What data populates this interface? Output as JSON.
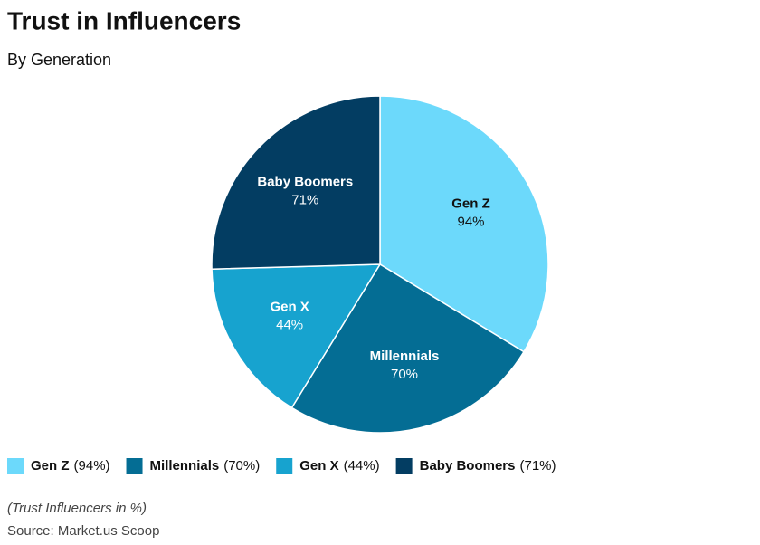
{
  "chart_data": {
    "type": "pie",
    "title": "Trust in Influencers",
    "subtitle": "By Generation",
    "categories": [
      "Gen Z",
      "Millennials",
      "Gen X",
      "Baby Boomers"
    ],
    "values": [
      94,
      70,
      44,
      71
    ],
    "value_labels": [
      "94%",
      "70%",
      "44%",
      "71%"
    ],
    "legend_labels": [
      "(94%)",
      "(70%)",
      "(44%)",
      "(71%)"
    ],
    "colors": [
      "#6cd9fb",
      "#046d94",
      "#17a3cf",
      "#033d62"
    ],
    "note": "(Trust Influencers in %)",
    "source": "Source: Market.us Scoop"
  }
}
